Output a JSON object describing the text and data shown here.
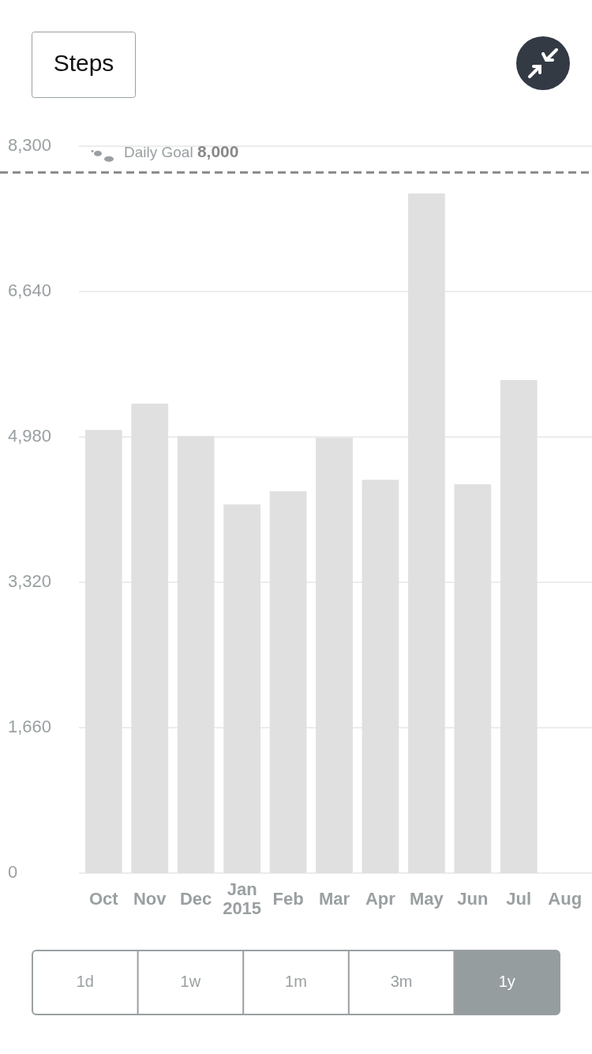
{
  "chart_data": {
    "type": "bar",
    "title": "Steps",
    "categories": [
      "Oct",
      "Nov",
      "Dec",
      "Jan 2015",
      "Feb",
      "Mar",
      "Apr",
      "May",
      "Jun",
      "Jul",
      "Aug"
    ],
    "values": [
      5060,
      5360,
      4990,
      4210,
      4360,
      4970,
      4490,
      7760,
      4440,
      5630,
      null
    ],
    "color": "#e0e0e0",
    "ylim": [
      0,
      8300
    ],
    "yticks": [
      0,
      {
        "value": 1660,
        "label": "1,660"
      },
      {
        "value": 3320,
        "label": "3,320"
      },
      {
        "value": 4980,
        "label": "4,980"
      },
      {
        "value": 6640,
        "label": "6,640"
      },
      {
        "value": 8300,
        "label": "8,300"
      }
    ],
    "grid": "y",
    "ref_lines": [
      {
        "axis": "y",
        "value": 8000,
        "label": "Daily Goal 8,000",
        "line_style": "dashed",
        "color": "#888888"
      }
    ],
    "annotations": [
      "1d",
      "1w",
      "1m",
      "3m",
      "1y"
    ]
  }
}
